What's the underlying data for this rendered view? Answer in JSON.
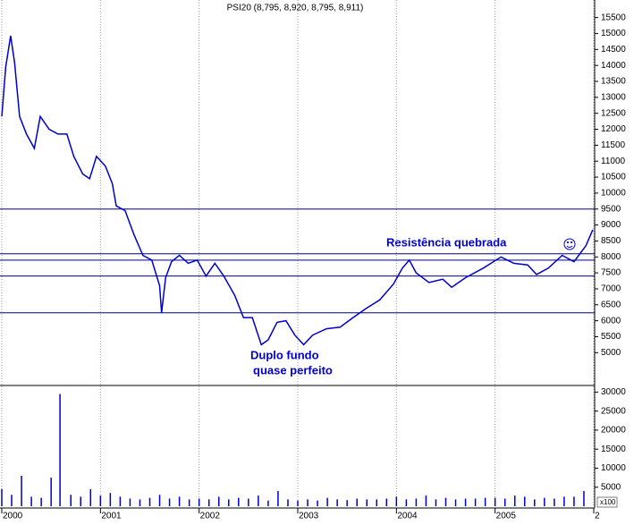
{
  "chart_data": [
    {
      "type": "line",
      "title": "PSI20 (8,795, 8,920, 8,795, 8,911)",
      "annotations": [
        "Resistência quebrada",
        "Duplo fundo",
        "quase perfeito"
      ],
      "x": [
        2000.0,
        2000.04,
        2000.09,
        2000.13,
        2000.18,
        2000.25,
        2000.33,
        2000.39,
        2000.48,
        2000.57,
        2000.66,
        2000.73,
        2000.82,
        2000.89,
        2000.96,
        2001.05,
        2001.12,
        2001.16,
        2001.25,
        2001.34,
        2001.43,
        2001.52,
        2001.6,
        2001.62,
        2001.66,
        2001.72,
        2001.8,
        2001.89,
        2001.98,
        2002.07,
        2002.16,
        2002.25,
        2002.36,
        2002.45,
        2002.54,
        2002.63,
        2002.7,
        2002.79,
        2002.88,
        2002.97,
        2003.06,
        2003.15,
        2003.29,
        2003.43,
        2003.56,
        2003.7,
        2003.83,
        2003.97,
        2004.06,
        2004.13,
        2004.2,
        2004.33,
        2004.47,
        2004.56,
        2004.7,
        2004.88,
        2005.06,
        2005.19,
        2005.33,
        2005.42,
        2005.54,
        2005.68,
        2005.8,
        2005.92,
        2005.99
      ],
      "series": [
        {
          "name": "PSI20",
          "color": "#0000cc",
          "values": [
            12400,
            13950,
            14930,
            14090,
            12400,
            11850,
            11400,
            12400,
            12000,
            11850,
            11850,
            11150,
            10600,
            10450,
            11150,
            10850,
            10300,
            9600,
            9450,
            8700,
            8050,
            7900,
            7100,
            6250,
            7350,
            7850,
            8050,
            7800,
            7900,
            7400,
            7800,
            7400,
            6800,
            6100,
            6100,
            5250,
            5400,
            5950,
            6000,
            5550,
            5250,
            5550,
            5750,
            5800,
            6100,
            6400,
            6650,
            7150,
            7650,
            7900,
            7500,
            7200,
            7300,
            7050,
            7350,
            7650,
            8000,
            7800,
            7750,
            7450,
            7650,
            8050,
            7850,
            8350,
            8850
          ]
        }
      ],
      "hlines": [
        9500,
        8100,
        7900,
        7400,
        6250
      ],
      "hline_color": "#000080",
      "xlim": [
        2000,
        2006
      ],
      "xticks": [
        2000,
        2001,
        2002,
        2003,
        2004,
        2005,
        {
          "value": 2006,
          "label": "2"
        }
      ],
      "ylim": [
        4000,
        16050
      ],
      "yticks": [
        5000,
        5500,
        6000,
        6500,
        7000,
        7500,
        8000,
        8500,
        9000,
        9500,
        10000,
        10500,
        11000,
        11500,
        12000,
        12500,
        13000,
        13500,
        14000,
        14500,
        15000,
        15500
      ],
      "grid": true
    },
    {
      "type": "bar",
      "y_label": "x100",
      "color": "#0000cc",
      "x": [
        2000.0,
        2000.1,
        2000.2,
        2000.3,
        2000.4,
        2000.5,
        2000.59,
        2000.7,
        2000.8,
        2000.9,
        2001.0,
        2001.1,
        2001.2,
        2001.3,
        2001.4,
        2001.5,
        2001.6,
        2001.7,
        2001.8,
        2001.9,
        2002.0,
        2002.1,
        2002.2,
        2002.3,
        2002.4,
        2002.5,
        2002.6,
        2002.7,
        2002.8,
        2002.9,
        2003.0,
        2003.1,
        2003.2,
        2003.3,
        2003.4,
        2003.5,
        2003.6,
        2003.7,
        2003.8,
        2003.9,
        2004.0,
        2004.1,
        2004.2,
        2004.3,
        2004.4,
        2004.5,
        2004.6,
        2004.7,
        2004.8,
        2004.9,
        2005.0,
        2005.1,
        2005.2,
        2005.3,
        2005.4,
        2005.5,
        2005.6,
        2005.7,
        2005.8,
        2005.9
      ],
      "values": [
        4500,
        3000,
        8000,
        2500,
        2200,
        7500,
        29500,
        3000,
        2500,
        4500,
        2800,
        3500,
        2500,
        2000,
        1800,
        2200,
        3000,
        2000,
        2500,
        1800,
        2000,
        1800,
        2500,
        1800,
        2200,
        2000,
        2800,
        1500,
        4000,
        1800,
        1500,
        1800,
        1500,
        2200,
        1800,
        1600,
        2000,
        1800,
        1800,
        2000,
        2500,
        1800,
        2000,
        2800,
        1800,
        2200,
        1800,
        2000,
        2000,
        2200,
        2200,
        2000,
        2800,
        2500,
        1800,
        2200,
        2000,
        2500,
        2500,
        4000
      ],
      "ylim": [
        0,
        31500
      ],
      "yticks": [
        5000,
        10000,
        15000,
        20000,
        25000,
        30000
      ]
    }
  ]
}
